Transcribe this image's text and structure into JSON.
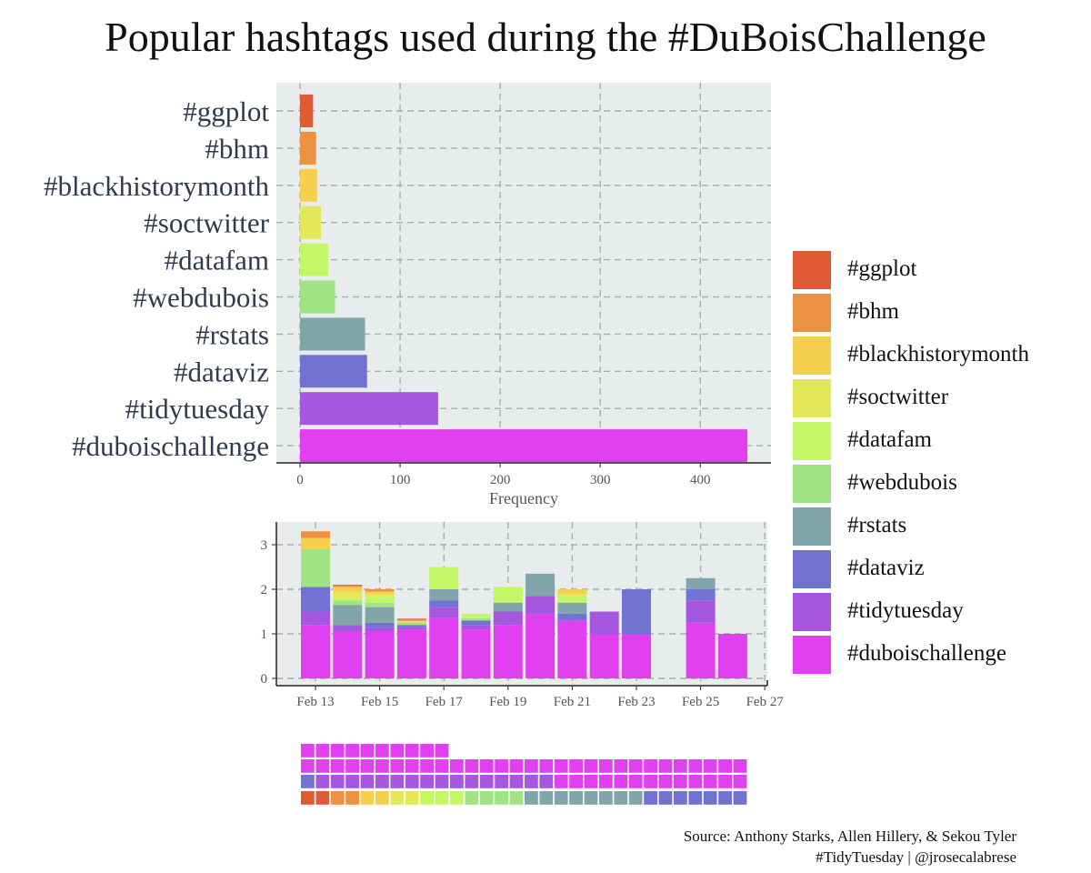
{
  "title": "Popular hashtags used during the #DuBoisChallenge",
  "colors": {
    "#ggplot": "#e05a36",
    "#bhm": "#ec9142",
    "#blackhistorymonth": "#f7cf4f",
    "#soctwitter": "#e4e858",
    "#datafam": "#c4f766",
    "#webdubois": "#9fe385",
    "#rstats": "#80a6ac",
    "#dataviz": "#7272d2",
    "#tidytuesday": "#a657e0",
    "#duboischallenge": "#e040f0",
    "panel_bg": "#e9ecec"
  },
  "legend": [
    "#ggplot",
    "#bhm",
    "#blackhistorymonth",
    "#soctwitter",
    "#datafam",
    "#webdubois",
    "#rstats",
    "#dataviz",
    "#tidytuesday",
    "#duboischallenge"
  ],
  "chart_data": [
    {
      "type": "bar",
      "orientation": "horizontal",
      "categories": [
        "#ggplot",
        "#bhm",
        "#blackhistorymonth",
        "#soctwitter",
        "#datafam",
        "#webdubois",
        "#rstats",
        "#dataviz",
        "#tidytuesday",
        "#duboischallenge"
      ],
      "values": [
        13,
        16,
        17,
        21,
        28,
        35,
        65,
        67,
        138,
        447
      ],
      "xlabel": "Frequency",
      "xlim": [
        0,
        470
      ],
      "xticks": [
        0,
        100,
        200,
        300,
        400
      ],
      "grid": true
    },
    {
      "type": "bar",
      "stacked": true,
      "dates": [
        "Feb 13",
        "Feb 14",
        "Feb 15",
        "Feb 16",
        "Feb 17",
        "Feb 18",
        "Feb 19",
        "Feb 20",
        "Feb 21",
        "Feb 22",
        "Feb 23",
        "Feb 25",
        "Feb 26"
      ],
      "series": [
        {
          "name": "#duboischallenge",
          "values": [
            1.2,
            1.05,
            1.05,
            1.1,
            1.35,
            1.1,
            1.2,
            1.45,
            1.3,
            1.0,
            1.0,
            1.25,
            1.0
          ]
        },
        {
          "name": "#tidytuesday",
          "values": [
            0.3,
            0.15,
            0.1,
            0.05,
            0.25,
            0.1,
            0.3,
            0.4,
            0.0,
            0.5,
            0.0,
            0.5,
            0.0
          ]
        },
        {
          "name": "#dataviz",
          "values": [
            0.55,
            0.0,
            0.1,
            0.05,
            0.15,
            0.1,
            0.0,
            0.0,
            0.15,
            0.0,
            1.0,
            0.25,
            0.0
          ]
        },
        {
          "name": "#rstats",
          "values": [
            0.0,
            0.45,
            0.35,
            0.0,
            0.25,
            0.0,
            0.2,
            0.5,
            0.25,
            0.0,
            0.0,
            0.25,
            0.0
          ]
        },
        {
          "name": "#webdubois",
          "values": [
            0.85,
            0.1,
            0.1,
            0.05,
            0.0,
            0.05,
            0.0,
            0.0,
            0.0,
            0.0,
            0.0,
            0.0,
            0.0
          ]
        },
        {
          "name": "#datafam",
          "values": [
            0.0,
            0.05,
            0.15,
            0.0,
            0.5,
            0.1,
            0.35,
            0.0,
            0.15,
            0.0,
            0.0,
            0.0,
            0.0
          ]
        },
        {
          "name": "#soctwitter",
          "values": [
            0.0,
            0.15,
            0.05,
            0.02,
            0.0,
            0.0,
            0.0,
            0.0,
            0.05,
            0.0,
            0.0,
            0.0,
            0.0
          ]
        },
        {
          "name": "#blackhistorymonth",
          "values": [
            0.25,
            0.1,
            0.05,
            0.02,
            0.0,
            0.0,
            0.0,
            0.0,
            0.1,
            0.0,
            0.0,
            0.0,
            0.0
          ]
        },
        {
          "name": "#bhm",
          "values": [
            0.15,
            0.03,
            0.05,
            0.03,
            0.0,
            0.0,
            0.0,
            0.0,
            0.0,
            0.0,
            0.0,
            0.0,
            0.0
          ]
        },
        {
          "name": "#ggplot",
          "values": [
            0.0,
            0.02,
            0.0,
            0.02,
            0.0,
            0.0,
            0.0,
            0.0,
            0.0,
            0.0,
            0.0,
            0.0,
            0.0
          ]
        }
      ],
      "ylim": [
        0,
        3.4
      ],
      "yticks": [
        0,
        1,
        2,
        3
      ],
      "xticks": [
        "Feb 13",
        "Feb 15",
        "Feb 17",
        "Feb 19",
        "Feb 21",
        "Feb 23",
        "Feb 25",
        "Feb 27"
      ],
      "grid": true
    },
    {
      "type": "waffle",
      "rows": [
        [
          "#ggplot",
          "#ggplot",
          "#bhm",
          "#bhm",
          "#blackhistorymonth",
          "#blackhistorymonth",
          "#soctwitter",
          "#soctwitter",
          "#datafam",
          "#datafam",
          "#datafam",
          "#webdubois",
          "#webdubois",
          "#webdubois",
          "#webdubois",
          "#rstats",
          "#rstats",
          "#rstats",
          "#rstats",
          "#rstats",
          "#rstats",
          "#rstats",
          "#rstats",
          "#dataviz",
          "#dataviz",
          "#dataviz",
          "#dataviz",
          "#dataviz",
          "#dataviz",
          "#dataviz"
        ],
        [
          "#dataviz",
          "#tidytuesday",
          "#tidytuesday",
          "#tidytuesday",
          "#tidytuesday",
          "#tidytuesday",
          "#tidytuesday",
          "#tidytuesday",
          "#tidytuesday",
          "#tidytuesday",
          "#tidytuesday",
          "#tidytuesday",
          "#tidytuesday",
          "#tidytuesday",
          "#tidytuesday",
          "#tidytuesday",
          "#tidytuesday",
          "#duboischallenge",
          "#duboischallenge",
          "#duboischallenge",
          "#duboischallenge",
          "#duboischallenge",
          "#duboischallenge",
          "#duboischallenge",
          "#duboischallenge",
          "#duboischallenge",
          "#duboischallenge",
          "#duboischallenge",
          "#duboischallenge",
          "#duboischallenge"
        ],
        [
          "#duboischallenge",
          "#duboischallenge",
          "#duboischallenge",
          "#duboischallenge",
          "#duboischallenge",
          "#duboischallenge",
          "#duboischallenge",
          "#duboischallenge",
          "#duboischallenge",
          "#duboischallenge",
          "#duboischallenge",
          "#duboischallenge",
          "#duboischallenge",
          "#duboischallenge",
          "#duboischallenge",
          "#duboischallenge",
          "#duboischallenge",
          "#duboischallenge",
          "#duboischallenge",
          "#duboischallenge",
          "#duboischallenge",
          "#duboischallenge",
          "#duboischallenge",
          "#duboischallenge",
          "#duboischallenge",
          "#duboischallenge",
          "#duboischallenge",
          "#duboischallenge",
          "#duboischallenge",
          "#duboischallenge"
        ],
        [
          "#duboischallenge",
          "#duboischallenge",
          "#duboischallenge",
          "#duboischallenge",
          "#duboischallenge",
          "#duboischallenge",
          "#duboischallenge",
          "#duboischallenge",
          "#duboischallenge",
          "#duboischallenge"
        ]
      ]
    }
  ],
  "caption": {
    "line1": "Source:  Anthony Starks, Allen Hillery, & Sekou Tyler",
    "line2": "#TidyTuesday  |  @jrosecalabrese"
  }
}
